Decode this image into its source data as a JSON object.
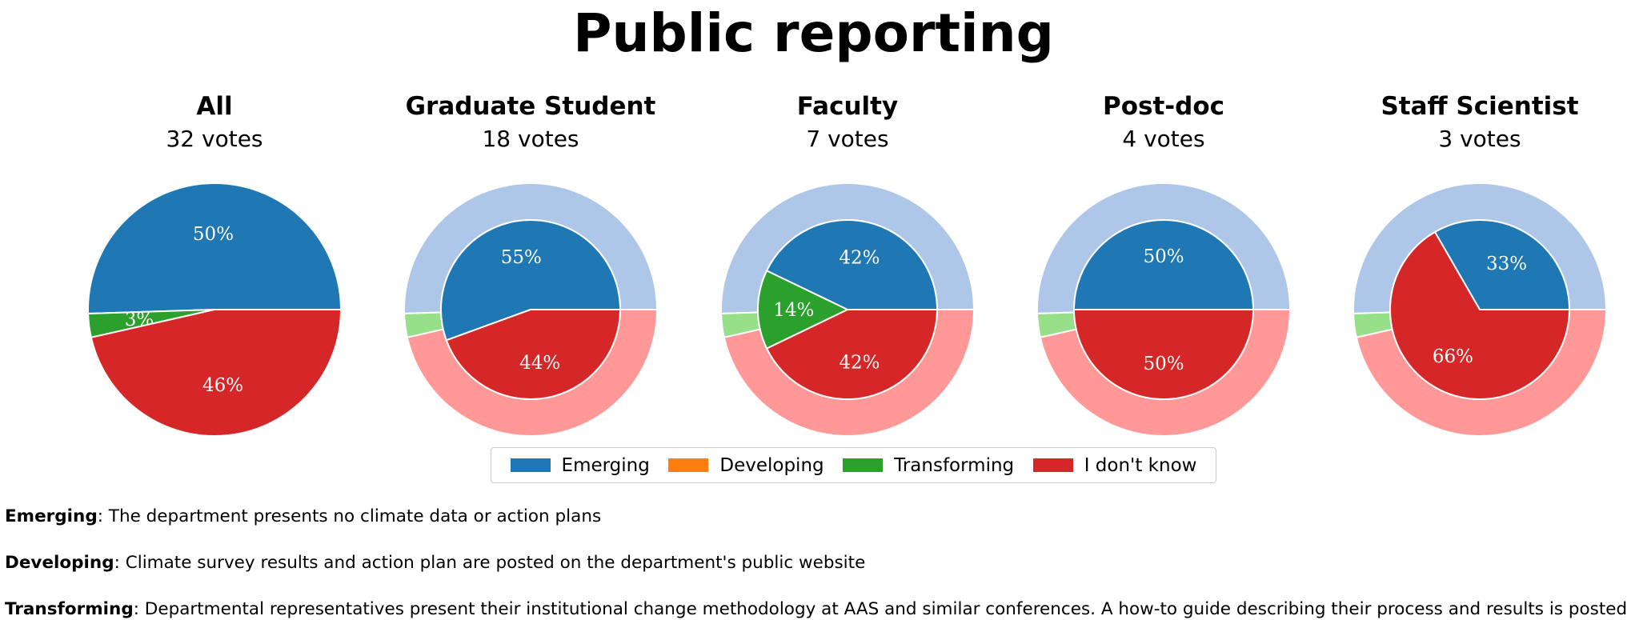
{
  "title": "Public reporting",
  "colors": {
    "Emerging": "#1f77b4",
    "Developing": "#ff7f0e",
    "Transforming": "#2ca02c",
    "I don't know": "#d62728",
    "outer_emerging": "#aec7e8",
    "outer_transforming": "#98df8a",
    "outer_dontknow": "#ff9896"
  },
  "chart_data": [
    {
      "type": "pie",
      "title": "All",
      "subtitle": "32 votes",
      "categories": [
        "Emerging",
        "Developing",
        "Transforming",
        "I don't know"
      ],
      "values": [
        50,
        0,
        3,
        46
      ],
      "labels": [
        "50%",
        "",
        "3%",
        "46%"
      ]
    },
    {
      "type": "pie",
      "title": "Graduate Student",
      "subtitle": "18 votes",
      "categories": [
        "Emerging",
        "Developing",
        "Transforming",
        "I don't know"
      ],
      "values": [
        55,
        0,
        0,
        44
      ],
      "labels": [
        "55%",
        "",
        "",
        "44%"
      ],
      "overall_ring": true
    },
    {
      "type": "pie",
      "title": "Faculty",
      "subtitle": "7 votes",
      "categories": [
        "Emerging",
        "Developing",
        "Transforming",
        "I don't know"
      ],
      "values": [
        42,
        0,
        14,
        42
      ],
      "labels": [
        "42%",
        "",
        "14%",
        "42%"
      ],
      "overall_ring": true
    },
    {
      "type": "pie",
      "title": "Post-doc",
      "subtitle": "4 votes",
      "categories": [
        "Emerging",
        "Developing",
        "Transforming",
        "I don't know"
      ],
      "values": [
        50,
        0,
        0,
        50
      ],
      "labels": [
        "50%",
        "",
        "",
        "50%"
      ],
      "overall_ring": true
    },
    {
      "type": "pie",
      "title": "Staff Scientist",
      "subtitle": "3 votes",
      "categories": [
        "Emerging",
        "Developing",
        "Transforming",
        "I don't know"
      ],
      "values": [
        33,
        0,
        0,
        66
      ],
      "labels": [
        "33%",
        "",
        "",
        "66%"
      ],
      "overall_ring": true
    }
  ],
  "legend": {
    "placement": "bottom-center",
    "items": [
      "Emerging",
      "Developing",
      "Transforming",
      "I don't know"
    ]
  },
  "definitions": [
    {
      "term": "Emerging",
      "text": ": The department presents no climate data or action plans"
    },
    {
      "term": "Developing",
      "text": ": Climate survey results and action plan are posted on the department's public website"
    },
    {
      "term": "Transforming",
      "text": ": Departmental representatives present their institutional change methodology at AAS and similar conferences. A how-to guide describing their process and results is posted online"
    }
  ]
}
